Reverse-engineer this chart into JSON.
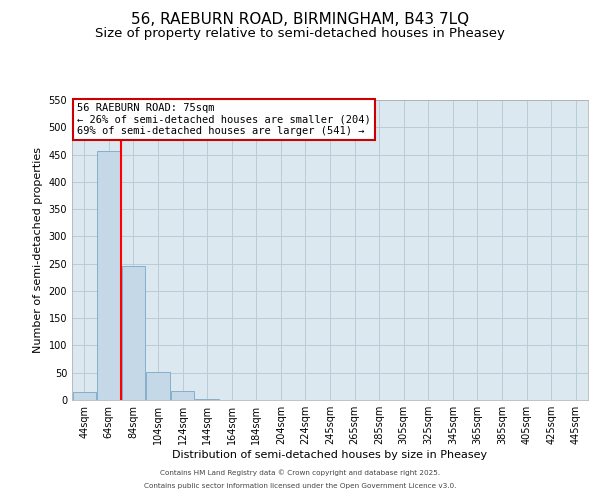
{
  "title": "56, RAEBURN ROAD, BIRMINGHAM, B43 7LQ",
  "subtitle": "Size of property relative to semi-detached houses in Pheasey",
  "xlabel": "Distribution of semi-detached houses by size in Pheasey",
  "ylabel": "Number of semi-detached properties",
  "bar_labels": [
    "44sqm",
    "64sqm",
    "84sqm",
    "104sqm",
    "124sqm",
    "144sqm",
    "164sqm",
    "184sqm",
    "204sqm",
    "224sqm",
    "245sqm",
    "265sqm",
    "285sqm",
    "305sqm",
    "325sqm",
    "345sqm",
    "365sqm",
    "385sqm",
    "405sqm",
    "425sqm",
    "445sqm"
  ],
  "bar_values": [
    15,
    457,
    245,
    51,
    17,
    1,
    0,
    0,
    0,
    0,
    0,
    0,
    0,
    0,
    0,
    0,
    0,
    0,
    0,
    0,
    0
  ],
  "bar_color": "#c5d8e8",
  "bar_edge_color": "#7aa8c8",
  "vline_x": 1.5,
  "vline_color": "red",
  "annotation_title": "56 RAEBURN ROAD: 75sqm",
  "annotation_line1": "← 26% of semi-detached houses are smaller (204)",
  "annotation_line2": "69% of semi-detached houses are larger (541) →",
  "annotation_box_color": "#ffffff",
  "annotation_box_edgecolor": "#cc0000",
  "ylim": [
    0,
    550
  ],
  "yticks": [
    0,
    50,
    100,
    150,
    200,
    250,
    300,
    350,
    400,
    450,
    500,
    550
  ],
  "footer1": "Contains HM Land Registry data © Crown copyright and database right 2025.",
  "footer2": "Contains public sector information licensed under the Open Government Licence v3.0.",
  "plot_bg_color": "#dce8f0",
  "fig_bg_color": "#ffffff",
  "grid_color": "#b8ccd8",
  "title_fontsize": 11,
  "subtitle_fontsize": 9.5,
  "axis_label_fontsize": 8,
  "tick_fontsize": 7,
  "annotation_fontsize": 7.5
}
